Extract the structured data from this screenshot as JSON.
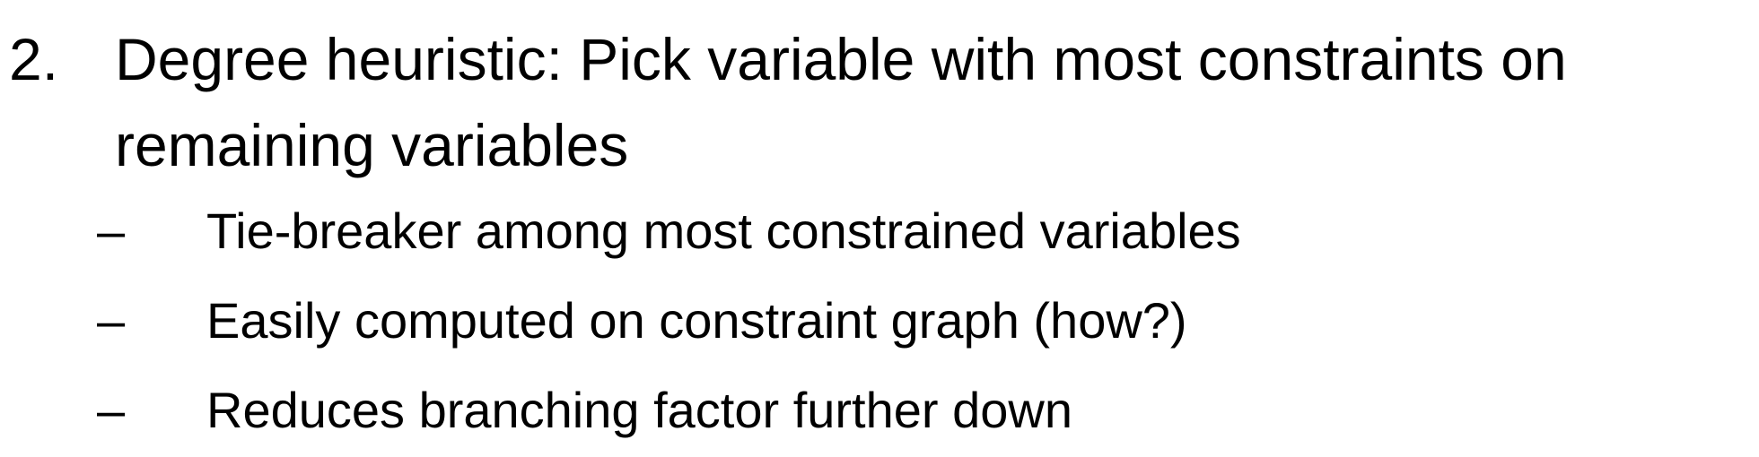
{
  "main": {
    "number": "2.",
    "line1": "Degree heuristic: Pick variable with most constraints on",
    "line2": "remaining variables"
  },
  "sub_bullet_glyph": "–",
  "sub_items": [
    {
      "text": "Tie-breaker among most constrained variables"
    },
    {
      "text": "Easily computed on constraint graph (how?)"
    },
    {
      "text": "Reduces branching factor further down"
    }
  ]
}
